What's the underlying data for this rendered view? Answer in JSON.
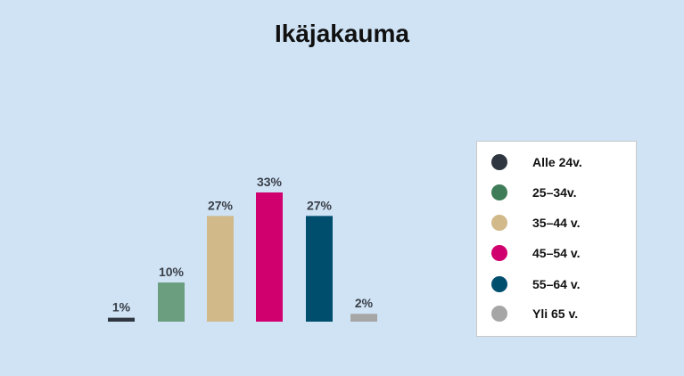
{
  "chart_data": {
    "type": "bar",
    "title": "Ikäjakauma",
    "categories": [
      "Alle 24v.",
      "25–34v.",
      "35–44 v.",
      "45–54 v.",
      "55–64 v.",
      "Yli 65 v."
    ],
    "values": [
      1,
      10,
      27,
      33,
      27,
      2
    ],
    "value_labels": [
      "1%",
      "10%",
      "27%",
      "33%",
      "27%",
      "2%"
    ],
    "unit": "%",
    "colors": [
      "#2f3640",
      "#6b9e7f",
      "#d1b98a",
      "#d1006f",
      "#004e6e",
      "#a6a6a6"
    ],
    "legend_colors": [
      "#2f3640",
      "#3f7d58",
      "#d1b98a",
      "#d1006f",
      "#004e6e",
      "#a6a6a6"
    ],
    "legend_position": "right",
    "grid": false,
    "ylim": [
      0,
      33
    ]
  }
}
